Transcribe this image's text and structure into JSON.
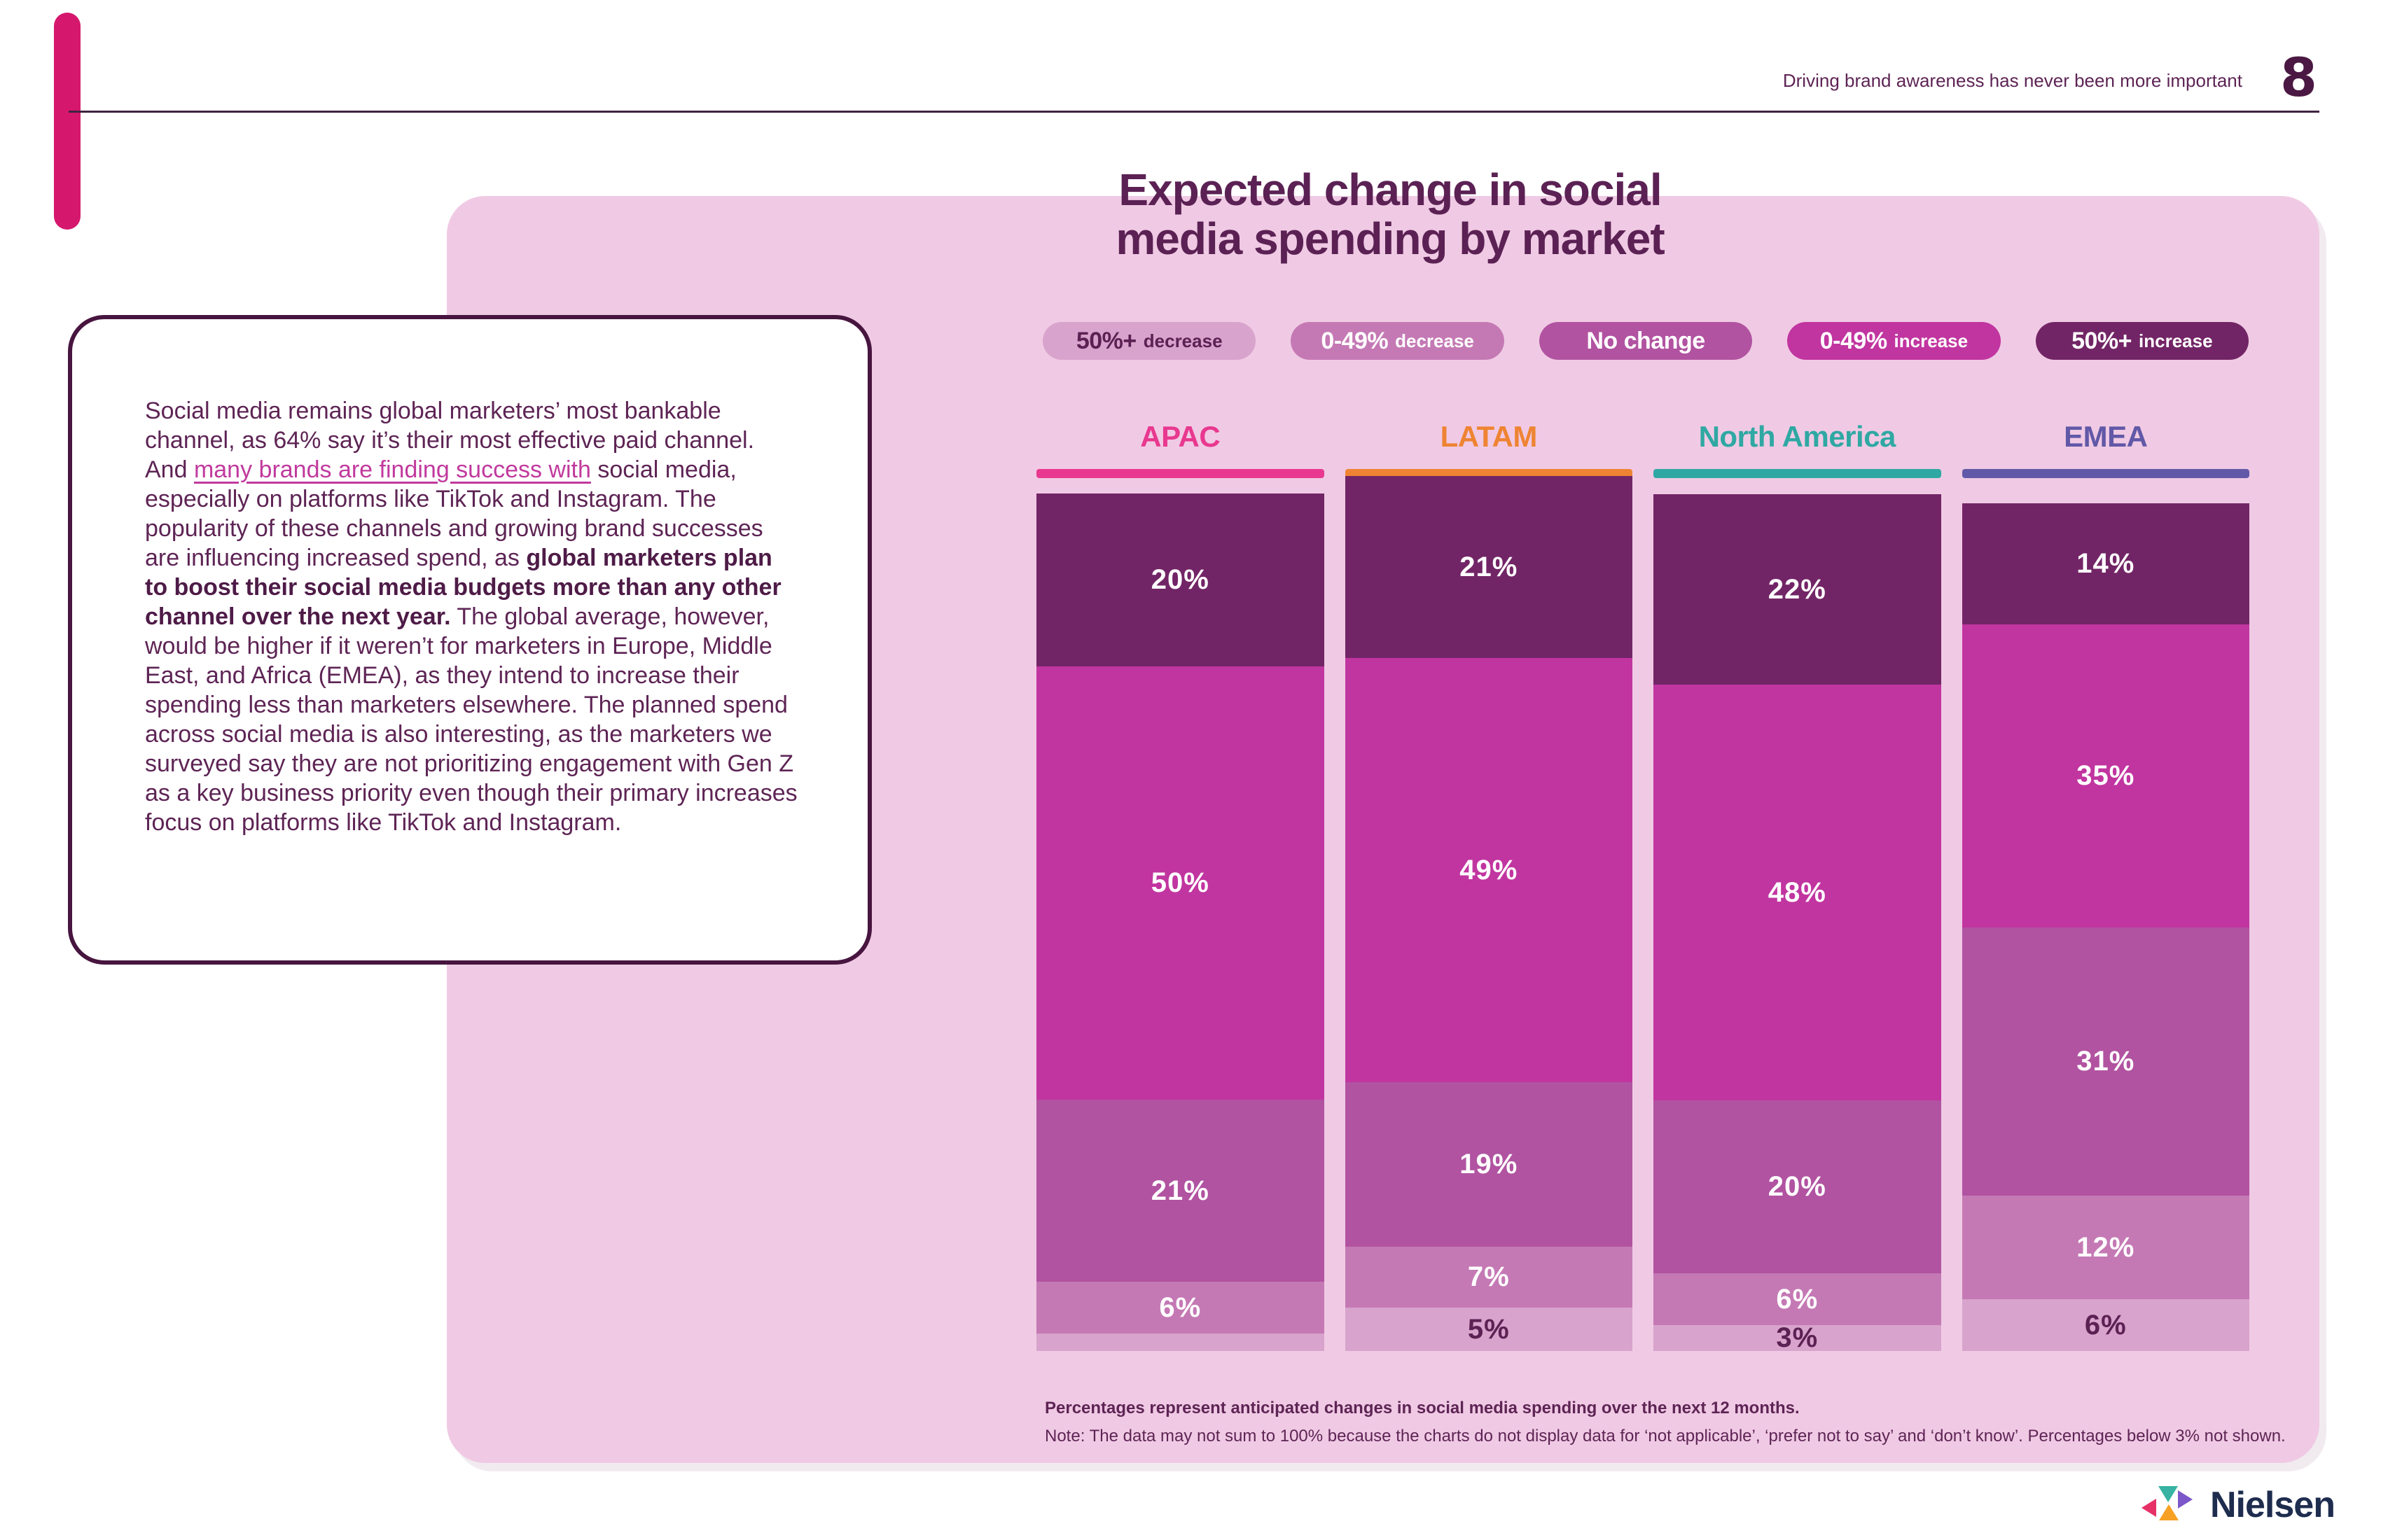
{
  "page": {
    "header_note": "Driving brand awareness has never been more important",
    "page_number": "8"
  },
  "title": {
    "line1": "Expected change in social",
    "line2": "media spending by market"
  },
  "legend": [
    {
      "main": "50%+",
      "suffix": "decrease",
      "bg": "#d8a3cc",
      "fg": "#5c2153"
    },
    {
      "main": "0-49%",
      "suffix": "decrease",
      "bg": "#c479b4",
      "fg": "#ffffff"
    },
    {
      "main": "No change",
      "suffix": "",
      "bg": "#b153a1",
      "fg": "#ffffff"
    },
    {
      "main": "0-49%",
      "suffix": "increase",
      "bg": "#c135a0",
      "fg": "#ffffff"
    },
    {
      "main": "50%+",
      "suffix": "increase",
      "bg": "#722566",
      "fg": "#ffffff"
    }
  ],
  "bands": {
    "colors": [
      "#722566",
      "#c135a0",
      "#b153a1",
      "#c479b4",
      "#d8a3cc"
    ],
    "label_colors": [
      "#ffffff",
      "#ffffff",
      "#ffffff",
      "#ffffff",
      "#5c2153"
    ]
  },
  "markets": [
    {
      "name": "APAC",
      "color": "#e8388f",
      "segments": [
        {
          "value": 20,
          "label": "20%"
        },
        {
          "value": 50,
          "label": "50%"
        },
        {
          "value": 21,
          "label": "21%"
        },
        {
          "value": 6,
          "label": "6%"
        },
        {
          "value": 2,
          "label": ""
        }
      ]
    },
    {
      "name": "LATAM",
      "color": "#ee8433",
      "segments": [
        {
          "value": 21,
          "label": "21%"
        },
        {
          "value": 49,
          "label": "49%"
        },
        {
          "value": 19,
          "label": "19%"
        },
        {
          "value": 7,
          "label": "7%"
        },
        {
          "value": 5,
          "label": "5%"
        }
      ]
    },
    {
      "name": "North America",
      "color": "#2fa8a3",
      "segments": [
        {
          "value": 22,
          "label": "22%"
        },
        {
          "value": 48,
          "label": "48%"
        },
        {
          "value": 20,
          "label": "20%"
        },
        {
          "value": 6,
          "label": "6%"
        },
        {
          "value": 3,
          "label": "3%"
        }
      ]
    },
    {
      "name": "EMEA",
      "color": "#6158a7",
      "segments": [
        {
          "value": 14,
          "label": "14%"
        },
        {
          "value": 35,
          "label": "35%"
        },
        {
          "value": 31,
          "label": "31%"
        },
        {
          "value": 12,
          "label": "12%"
        },
        {
          "value": 6,
          "label": "6%"
        }
      ]
    }
  ],
  "sidebar_note": {
    "part1": "Social media remains global marketers’ most bankable channel, as 64% say it’s their most effective paid channel. And ",
    "link": "many brands are finding success with",
    "part2": " social media, especially on platforms like TikTok and Instagram. The popularity of these channels and growing brand successes are influencing increased spend, as ",
    "bold": "global marketers plan to boost their social media budgets more than any other channel over the next year.",
    "part3": " The global average, however, would be higher if it weren’t for marketers in Europe, Middle East, and Africa (EMEA), as they intend to increase their spending less than marketers elsewhere. The planned spend across social media is also interesting, as the marketers we surveyed say they are not prioritizing engagement with Gen Z as a key business priority even though their primary increases focus on platforms like TikTok and Instagram."
  },
  "footnotes": {
    "line1": "Percentages represent anticipated changes in social media spending over the next 12 months.",
    "line2": "Note: The data may not sum to 100% because the charts do not display data for ‘not applicable’, ‘prefer not to say’ and ‘don’t know’. Percentages below 3% not shown."
  },
  "logo": {
    "text": "Nielsen"
  },
  "chart_data": {
    "type": "bar",
    "stacked": true,
    "title": "Expected change in social media spending by market",
    "categories": [
      "APAC",
      "LATAM",
      "North America",
      "EMEA"
    ],
    "series": [
      {
        "name": "50%+ increase",
        "values": [
          20,
          21,
          22,
          14
        ]
      },
      {
        "name": "0-49% increase",
        "values": [
          50,
          49,
          48,
          35
        ]
      },
      {
        "name": "No change",
        "values": [
          21,
          19,
          20,
          31
        ]
      },
      {
        "name": "0-49% decrease",
        "values": [
          6,
          7,
          6,
          12
        ]
      },
      {
        "name": "50%+ decrease",
        "values": [
          2,
          5,
          3,
          6
        ]
      }
    ],
    "value_unit": "%",
    "legend_position": "top",
    "column_header_colors": [
      "#e8388f",
      "#ee8433",
      "#2fa8a3",
      "#6158a7"
    ]
  }
}
